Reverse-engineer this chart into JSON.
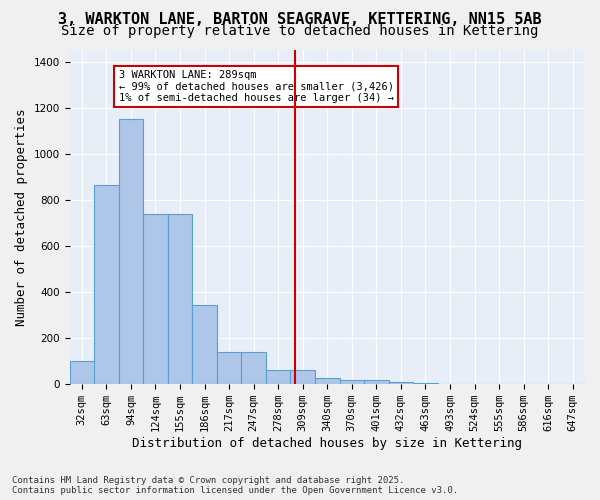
{
  "title_line1": "3, WARKTON LANE, BARTON SEAGRAVE, KETTERING, NN15 5AB",
  "title_line2": "Size of property relative to detached houses in Kettering",
  "xlabel": "Distribution of detached houses by size in Kettering",
  "ylabel": "Number of detached properties",
  "bar_color": "#aec6e8",
  "bar_edge_color": "#5a9fd4",
  "background_color": "#e8eef8",
  "grid_color": "#ffffff",
  "categories": [
    "32sqm",
    "63sqm",
    "94sqm",
    "124sqm",
    "155sqm",
    "186sqm",
    "217sqm",
    "247sqm",
    "278sqm",
    "309sqm",
    "340sqm",
    "370sqm",
    "401sqm",
    "432sqm",
    "463sqm",
    "493sqm",
    "524sqm",
    "555sqm",
    "586sqm",
    "616sqm",
    "647sqm"
  ],
  "values": [
    100,
    865,
    1150,
    740,
    740,
    345,
    140,
    140,
    60,
    60,
    25,
    20,
    20,
    10,
    5,
    0,
    0,
    0,
    0,
    0,
    0
  ],
  "vline_x": 8.7,
  "vline_color": "#cc0000",
  "annotation_text": "3 WARKTON LANE: 289sqm\n← 99% of detached houses are smaller (3,426)\n1% of semi-detached houses are larger (34) →",
  "annotation_box_color": "#cc0000",
  "ylim": [
    0,
    1450
  ],
  "yticks": [
    0,
    200,
    400,
    600,
    800,
    1000,
    1200,
    1400
  ],
  "footnote": "Contains HM Land Registry data © Crown copyright and database right 2025.\nContains public sector information licensed under the Open Government Licence v3.0.",
  "title_fontsize": 11,
  "subtitle_fontsize": 10,
  "tick_fontsize": 7.5,
  "label_fontsize": 9
}
